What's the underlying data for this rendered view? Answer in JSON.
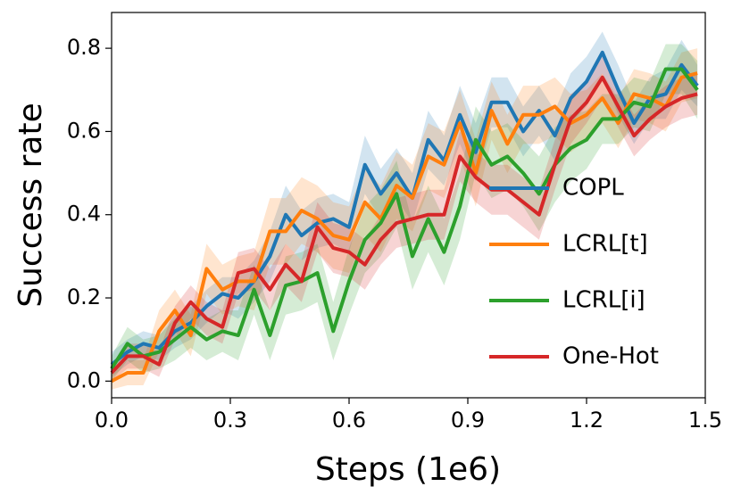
{
  "chart_data": {
    "type": "line",
    "xlabel": "Steps (1e6)",
    "ylabel": "Success rate",
    "x": [
      0,
      0.04,
      0.08,
      0.12,
      0.16,
      0.2,
      0.24,
      0.28,
      0.32,
      0.36,
      0.4,
      0.44,
      0.48,
      0.52,
      0.56,
      0.6,
      0.64,
      0.68,
      0.72,
      0.76,
      0.8,
      0.84,
      0.88,
      0.92,
      0.96,
      1.0,
      1.04,
      1.08,
      1.12,
      1.16,
      1.2,
      1.24,
      1.28,
      1.32,
      1.36,
      1.4,
      1.44,
      1.48
    ],
    "xlim": [
      0,
      1.5
    ],
    "xticks": [
      {
        "value": 0,
        "label": "0.0"
      },
      0.3,
      0.6,
      0.9,
      1.2,
      1.5
    ],
    "ylim": [
      -0.04,
      0.886
    ],
    "yticks": [
      {
        "value": 0,
        "label": "0.0"
      },
      0.2,
      0.4,
      0.6,
      0.8
    ],
    "legend": "right",
    "series": [
      {
        "name": "COPL",
        "color": "#1f77b4",
        "values": [
          0.04,
          0.07,
          0.09,
          0.08,
          0.12,
          0.14,
          0.18,
          0.21,
          0.2,
          0.24,
          0.3,
          0.4,
          0.35,
          0.38,
          0.39,
          0.37,
          0.52,
          0.45,
          0.5,
          0.44,
          0.58,
          0.53,
          0.64,
          0.55,
          0.67,
          0.67,
          0.6,
          0.65,
          0.59,
          0.68,
          0.72,
          0.79,
          0.7,
          0.62,
          0.68,
          0.69,
          0.76,
          0.71
        ],
        "band": [
          0.03,
          0.03,
          0.03,
          0.03,
          0.04,
          0.04,
          0.04,
          0.04,
          0.05,
          0.05,
          0.06,
          0.07,
          0.06,
          0.06,
          0.06,
          0.06,
          0.07,
          0.06,
          0.06,
          0.06,
          0.07,
          0.06,
          0.07,
          0.07,
          0.06,
          0.06,
          0.06,
          0.06,
          0.06,
          0.06,
          0.06,
          0.05,
          0.06,
          0.05,
          0.05,
          0.06,
          0.06,
          0.05
        ]
      },
      {
        "name": "LCRL[t]",
        "color": "#ff7f0e",
        "values": [
          0.0,
          0.02,
          0.02,
          0.12,
          0.17,
          0.11,
          0.27,
          0.22,
          0.24,
          0.24,
          0.36,
          0.36,
          0.41,
          0.39,
          0.35,
          0.34,
          0.43,
          0.39,
          0.47,
          0.44,
          0.54,
          0.52,
          0.62,
          0.5,
          0.65,
          0.57,
          0.64,
          0.64,
          0.66,
          0.62,
          0.64,
          0.68,
          0.62,
          0.69,
          0.68,
          0.66,
          0.73,
          0.74
        ],
        "band": [
          0.02,
          0.03,
          0.03,
          0.05,
          0.05,
          0.05,
          0.06,
          0.06,
          0.06,
          0.07,
          0.08,
          0.08,
          0.08,
          0.08,
          0.08,
          0.08,
          0.08,
          0.08,
          0.08,
          0.08,
          0.08,
          0.08,
          0.08,
          0.08,
          0.07,
          0.07,
          0.07,
          0.07,
          0.07,
          0.07,
          0.06,
          0.06,
          0.06,
          0.06,
          0.06,
          0.06,
          0.06,
          0.06
        ]
      },
      {
        "name": "LCRL[i]",
        "color": "#2ca02c",
        "values": [
          0.03,
          0.09,
          0.06,
          0.07,
          0.1,
          0.13,
          0.1,
          0.12,
          0.11,
          0.22,
          0.11,
          0.23,
          0.24,
          0.26,
          0.12,
          0.24,
          0.34,
          0.38,
          0.45,
          0.3,
          0.39,
          0.31,
          0.42,
          0.58,
          0.52,
          0.54,
          0.5,
          0.45,
          0.52,
          0.56,
          0.58,
          0.63,
          0.63,
          0.67,
          0.66,
          0.75,
          0.75,
          0.7
        ],
        "band": [
          0.03,
          0.04,
          0.04,
          0.04,
          0.05,
          0.05,
          0.05,
          0.05,
          0.06,
          0.06,
          0.06,
          0.07,
          0.07,
          0.07,
          0.07,
          0.08,
          0.08,
          0.08,
          0.08,
          0.08,
          0.08,
          0.08,
          0.08,
          0.08,
          0.08,
          0.08,
          0.08,
          0.09,
          0.09,
          0.08,
          0.07,
          0.06,
          0.06,
          0.06,
          0.06,
          0.06,
          0.06,
          0.07
        ]
      },
      {
        "name": "One-Hot",
        "color": "#d62728",
        "values": [
          0.02,
          0.06,
          0.06,
          0.04,
          0.14,
          0.19,
          0.15,
          0.13,
          0.26,
          0.27,
          0.22,
          0.28,
          0.24,
          0.37,
          0.32,
          0.31,
          0.28,
          0.34,
          0.38,
          0.39,
          0.4,
          0.4,
          0.54,
          0.49,
          0.46,
          0.46,
          0.43,
          0.4,
          0.52,
          0.63,
          0.67,
          0.73,
          0.66,
          0.59,
          0.63,
          0.66,
          0.68,
          0.69
        ],
        "band": [
          0.02,
          0.03,
          0.03,
          0.03,
          0.04,
          0.04,
          0.04,
          0.04,
          0.05,
          0.05,
          0.05,
          0.05,
          0.05,
          0.06,
          0.06,
          0.06,
          0.06,
          0.06,
          0.06,
          0.06,
          0.06,
          0.06,
          0.06,
          0.06,
          0.06,
          0.06,
          0.06,
          0.06,
          0.06,
          0.06,
          0.05,
          0.05,
          0.05,
          0.05,
          0.05,
          0.05,
          0.05,
          0.05
        ]
      }
    ]
  }
}
